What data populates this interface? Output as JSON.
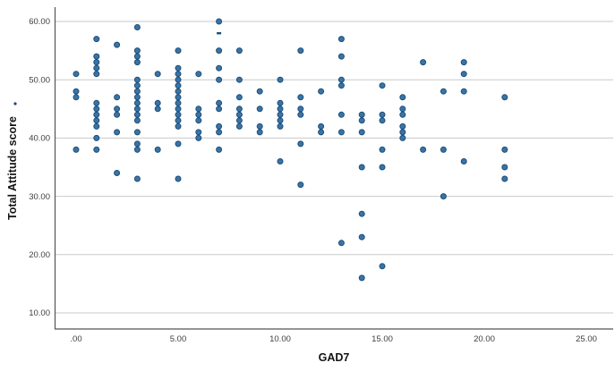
{
  "chart_data": {
    "type": "scatter",
    "title": "",
    "xlabel": "GAD7",
    "ylabel": "Total Attitude score",
    "x_tick_labels": [
      ".00",
      "5.00",
      "10.00",
      "15.00",
      "20.00",
      "25.00"
    ],
    "x_tick_values": [
      0,
      5,
      10,
      15,
      20,
      25
    ],
    "y_tick_labels": [
      "10.00",
      "20.00",
      "30.00",
      "40.00",
      "50.00",
      "60.00"
    ],
    "y_tick_values": [
      10,
      20,
      30,
      40,
      50,
      60
    ],
    "xlim": [
      -1.1,
      26.3
    ],
    "ylim": [
      7.2,
      62.5
    ],
    "grid": "horizontal-only",
    "legend": "none",
    "points": [
      [
        0,
        51
      ],
      [
        0,
        48
      ],
      [
        0,
        47
      ],
      [
        0,
        38
      ],
      [
        1,
        57
      ],
      [
        1,
        54
      ],
      [
        1,
        53
      ],
      [
        1,
        52
      ],
      [
        1,
        51
      ],
      [
        1,
        46
      ],
      [
        1,
        45
      ],
      [
        1,
        44
      ],
      [
        1,
        43
      ],
      [
        1,
        42
      ],
      [
        1,
        40
      ],
      [
        1,
        38
      ],
      [
        2,
        56
      ],
      [
        2,
        47
      ],
      [
        2,
        45
      ],
      [
        2,
        44
      ],
      [
        2,
        41
      ],
      [
        2,
        34
      ],
      [
        3,
        59
      ],
      [
        3,
        55
      ],
      [
        3,
        54
      ],
      [
        3,
        53
      ],
      [
        3,
        50
      ],
      [
        3,
        49
      ],
      [
        3,
        48
      ],
      [
        3,
        47
      ],
      [
        3,
        46
      ],
      [
        3,
        45
      ],
      [
        3,
        44
      ],
      [
        3,
        43
      ],
      [
        3,
        41
      ],
      [
        3,
        39
      ],
      [
        3,
        38
      ],
      [
        3,
        33
      ],
      [
        4,
        51
      ],
      [
        4,
        46
      ],
      [
        4,
        45
      ],
      [
        4,
        38
      ],
      [
        5,
        55
      ],
      [
        5,
        52
      ],
      [
        5,
        51
      ],
      [
        5,
        50
      ],
      [
        5,
        49
      ],
      [
        5,
        48
      ],
      [
        5,
        47
      ],
      [
        5,
        46
      ],
      [
        5,
        45
      ],
      [
        5,
        44
      ],
      [
        5,
        43
      ],
      [
        5,
        42
      ],
      [
        5,
        39
      ],
      [
        5,
        33
      ],
      [
        6,
        51
      ],
      [
        6,
        45
      ],
      [
        6,
        44
      ],
      [
        6,
        43
      ],
      [
        6,
        41
      ],
      [
        6,
        40
      ],
      [
        7,
        60
      ],
      [
        7,
        55
      ],
      [
        7,
        52
      ],
      [
        7,
        50
      ],
      [
        7,
        46
      ],
      [
        7,
        45
      ],
      [
        7,
        42
      ],
      [
        7,
        41
      ],
      [
        7,
        38
      ],
      [
        8,
        55
      ],
      [
        8,
        50
      ],
      [
        8,
        47
      ],
      [
        8,
        45
      ],
      [
        8,
        44
      ],
      [
        8,
        43
      ],
      [
        8,
        42
      ],
      [
        9,
        48
      ],
      [
        9,
        45
      ],
      [
        9,
        42
      ],
      [
        9,
        41
      ],
      [
        10,
        50
      ],
      [
        10,
        46
      ],
      [
        10,
        45
      ],
      [
        10,
        44
      ],
      [
        10,
        43
      ],
      [
        10,
        42
      ],
      [
        10,
        36
      ],
      [
        11,
        55
      ],
      [
        11,
        47
      ],
      [
        11,
        45
      ],
      [
        11,
        44
      ],
      [
        11,
        39
      ],
      [
        11,
        32
      ],
      [
        12,
        48
      ],
      [
        12,
        42
      ],
      [
        12,
        41
      ],
      [
        13,
        57
      ],
      [
        13,
        54
      ],
      [
        13,
        50
      ],
      [
        13,
        49
      ],
      [
        13,
        44
      ],
      [
        13,
        41
      ],
      [
        13,
        22
      ],
      [
        14,
        44
      ],
      [
        14,
        43
      ],
      [
        14,
        41
      ],
      [
        14,
        35
      ],
      [
        14,
        27
      ],
      [
        14,
        23
      ],
      [
        14,
        16
      ],
      [
        15,
        49
      ],
      [
        15,
        44
      ],
      [
        15,
        43
      ],
      [
        15,
        38
      ],
      [
        15,
        35
      ],
      [
        15,
        18
      ],
      [
        16,
        47
      ],
      [
        16,
        45
      ],
      [
        16,
        44
      ],
      [
        16,
        42
      ],
      [
        16,
        41
      ],
      [
        16,
        40
      ],
      [
        17,
        53
      ],
      [
        17,
        38
      ],
      [
        18,
        48
      ],
      [
        18,
        38
      ],
      [
        18,
        30
      ],
      [
        19,
        53
      ],
      [
        19,
        51
      ],
      [
        19,
        48
      ],
      [
        19,
        36
      ],
      [
        21,
        47
      ],
      [
        21,
        38
      ],
      [
        21,
        35
      ],
      [
        21,
        33
      ]
    ],
    "partial_dash_marker": {
      "x": 7,
      "y": 58
    },
    "y_title_superscript_dot": true,
    "colors": {
      "marker_fill": "#3a74a6",
      "marker_stroke": "#1d4e79",
      "gridline": "#c9c9c9",
      "axis_line": "#545454",
      "tick_text": "#3f3f3f",
      "title_text": "#141414",
      "background": "#ffffff"
    }
  }
}
